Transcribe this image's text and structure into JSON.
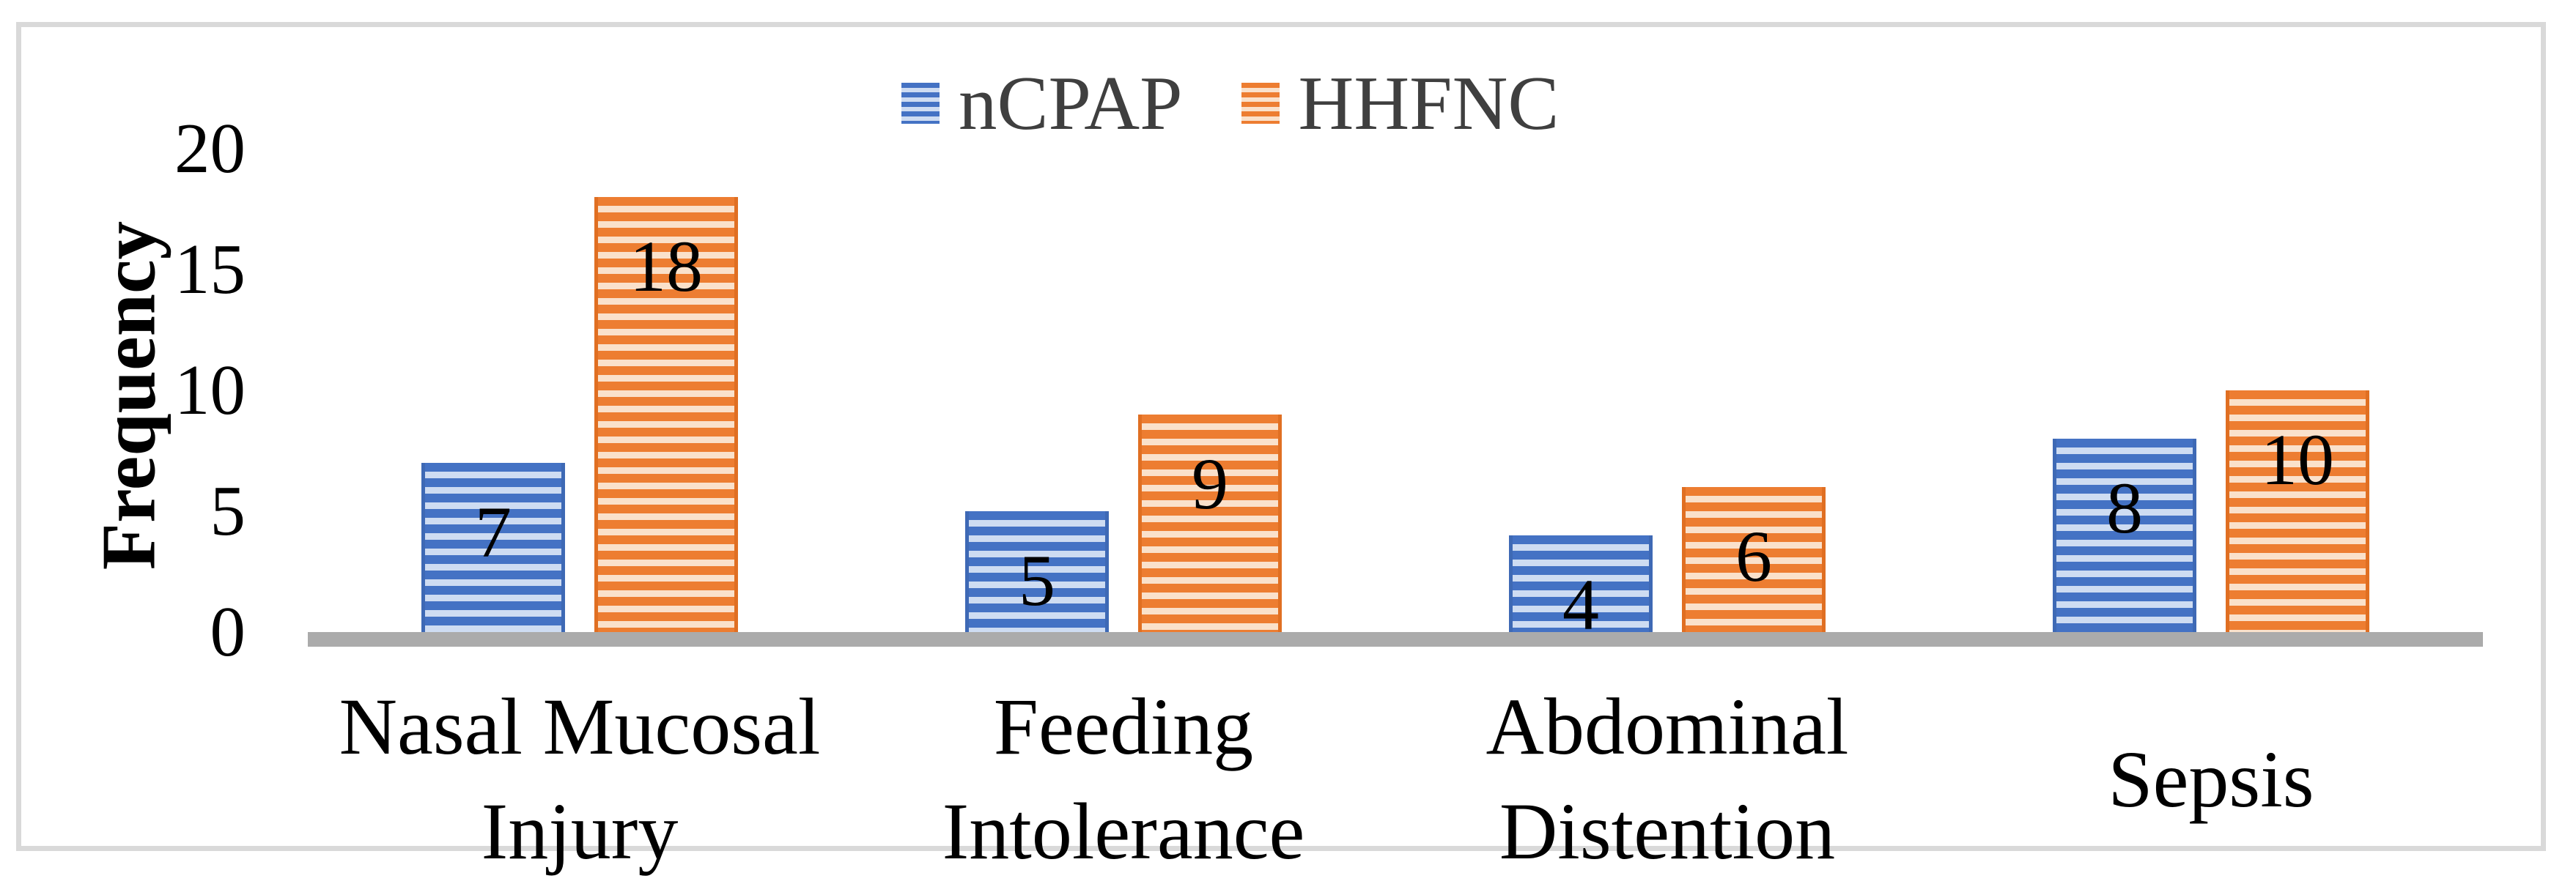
{
  "chart_data": {
    "type": "bar",
    "title": "",
    "categories": [
      "Nasal Mucosal Injury",
      "Feeding Intolerance",
      "Abdominal Distention",
      "Sepsis"
    ],
    "series": [
      {
        "name": "nCPAP",
        "values": [
          7,
          5,
          4,
          8
        ],
        "color": "#4472C4",
        "stripe_light_color": "#CEDCF2",
        "edge_color": "#3E69B5"
      },
      {
        "name": "HHFNC",
        "values": [
          18,
          9,
          6,
          10
        ],
        "color": "#ED7D31",
        "stripe_light_color": "#FAE1CB",
        "edge_color": "#E06F22"
      }
    ],
    "ylabel": "Frequency",
    "yticks": [
      0,
      5,
      10,
      15,
      20
    ],
    "ylim": [
      0,
      20
    ],
    "grid": false,
    "legend_position": "top-center",
    "data_labels": "inside-end",
    "bar_pattern": "horizontal-stripes",
    "legend_text_color": "#3F3F3F",
    "axis_line_color": "#ABABAB",
    "chart_border_color": "#D9D9D9",
    "text_color": "#000000"
  }
}
